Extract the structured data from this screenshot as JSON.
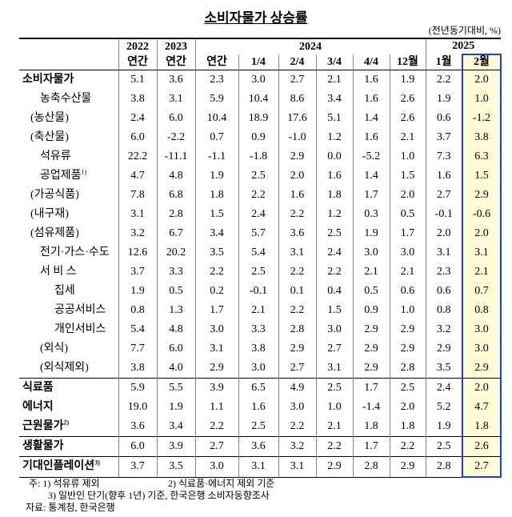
{
  "title": "소비자물가 상승률",
  "unit": "(전년동기대비, %)",
  "header": {
    "years": [
      "2022",
      "2023",
      "2024",
      "2025"
    ],
    "periods": [
      "연간",
      "연간",
      "연간",
      "1/4",
      "2/4",
      "3/4",
      "4/4",
      "12월",
      "1월",
      "2월"
    ]
  },
  "table": {
    "rows": [
      {
        "label": "소비자물가",
        "values": [
          "5.1",
          "3.6",
          "2.3",
          "3.0",
          "2.7",
          "2.1",
          "1.6",
          "1.9",
          "2.2",
          "2.0"
        ]
      },
      {
        "label": "농축수산물",
        "values": [
          "3.8",
          "3.1",
          "5.9",
          "10.4",
          "8.6",
          "3.4",
          "1.6",
          "2.6",
          "1.9",
          "1.0"
        ]
      },
      {
        "label": "(농산물)",
        "values": [
          "2.4",
          "6.0",
          "10.4",
          "18.9",
          "17.6",
          "5.1",
          "1.4",
          "2.6",
          "0.6",
          "-1.2"
        ]
      },
      {
        "label": "(축산물)",
        "values": [
          "6.0",
          "-2.2",
          "0.7",
          "0.9",
          "-1.0",
          "1.2",
          "1.6",
          "2.1",
          "3.7",
          "3.8"
        ]
      },
      {
        "label": "석유류",
        "values": [
          "22.2",
          "-11.1",
          "-1.1",
          "-1.8",
          "2.9",
          "0.0",
          "-5.2",
          "1.0",
          "7.3",
          "6.3"
        ]
      },
      {
        "label": "공업제품",
        "sup": "1)",
        "values": [
          "4.7",
          "4.8",
          "1.9",
          "2.5",
          "2.0",
          "1.6",
          "1.4",
          "1.5",
          "1.6",
          "1.5"
        ]
      },
      {
        "label": "(가공식품)",
        "values": [
          "7.8",
          "6.8",
          "1.8",
          "2.2",
          "1.6",
          "1.8",
          "1.7",
          "2.0",
          "2.7",
          "2.9"
        ]
      },
      {
        "label": "(내구재)",
        "values": [
          "3.1",
          "2.8",
          "1.5",
          "2.4",
          "2.2",
          "1.2",
          "0.3",
          "0.5",
          "-0.1",
          "-0.6"
        ]
      },
      {
        "label": "(섬유제품)",
        "values": [
          "3.2",
          "6.7",
          "3.4",
          "5.7",
          "3.6",
          "2.5",
          "1.9",
          "1.7",
          "2.0",
          "2.0"
        ]
      },
      {
        "label": "전기·가스·수도",
        "values": [
          "12.6",
          "20.2",
          "3.5",
          "5.4",
          "3.1",
          "2.4",
          "3.0",
          "3.0",
          "3.1",
          "3.1"
        ]
      },
      {
        "label": "서 비 스",
        "values": [
          "3.7",
          "3.3",
          "2.2",
          "2.5",
          "2.2",
          "2.2",
          "2.1",
          "2.1",
          "2.3",
          "2.1"
        ]
      },
      {
        "label": "집세",
        "values": [
          "1.9",
          "0.5",
          "0.2",
          "-0.1",
          "0.1",
          "0.4",
          "0.5",
          "0.6",
          "0.6",
          "0.7"
        ]
      },
      {
        "label": "공공서비스",
        "values": [
          "0.8",
          "1.3",
          "1.7",
          "2.1",
          "2.2",
          "1.5",
          "0.9",
          "1.0",
          "0.8",
          "0.8"
        ]
      },
      {
        "label": "개인서비스",
        "values": [
          "5.4",
          "4.8",
          "3.0",
          "3.3",
          "2.8",
          "3.0",
          "2.9",
          "2.9",
          "3.2",
          "3.0"
        ]
      },
      {
        "label": "(외식)",
        "values": [
          "7.7",
          "6.0",
          "3.1",
          "3.8",
          "2.9",
          "2.7",
          "2.9",
          "2.9",
          "2.9",
          "3.0"
        ]
      },
      {
        "label": "(외식제외)",
        "values": [
          "3.8",
          "4.0",
          "2.9",
          "3.0",
          "2.7",
          "3.1",
          "2.9",
          "2.8",
          "3.5",
          "2.9"
        ]
      },
      {
        "label": "식료품",
        "values": [
          "5.9",
          "5.5",
          "3.9",
          "6.5",
          "4.9",
          "2.5",
          "1.7",
          "2.5",
          "2.4",
          "2.0"
        ]
      },
      {
        "label": "에너지",
        "values": [
          "19.0",
          "1.9",
          "1.1",
          "1.6",
          "3.0",
          "1.0",
          "-1.4",
          "2.0",
          "5.2",
          "4.7"
        ]
      },
      {
        "label": "근원물가",
        "sup": "2)",
        "values": [
          "3.6",
          "3.4",
          "2.2",
          "2.5",
          "2.2",
          "2.1",
          "1.8",
          "1.8",
          "1.9",
          "1.8"
        ]
      },
      {
        "label": "생활물가",
        "values": [
          "6.0",
          "3.9",
          "2.7",
          "3.6",
          "3.2",
          "2.2",
          "1.7",
          "2.2",
          "2.5",
          "2.6"
        ]
      },
      {
        "label": "기대인플레이션",
        "sup": "3)",
        "values": [
          "3.7",
          "3.5",
          "3.0",
          "3.1",
          "3.1",
          "2.9",
          "2.8",
          "2.9",
          "2.8",
          "2.7"
        ]
      }
    ]
  },
  "notes": [
    "주: 1) 석유류 제외",
    "2) 식료품·에너지 제외 기준",
    "3) 일반인 단기(향후 1년) 기준, 한국은행 소비자동향조사",
    "자료: 통계청, 한국은행"
  ]
}
